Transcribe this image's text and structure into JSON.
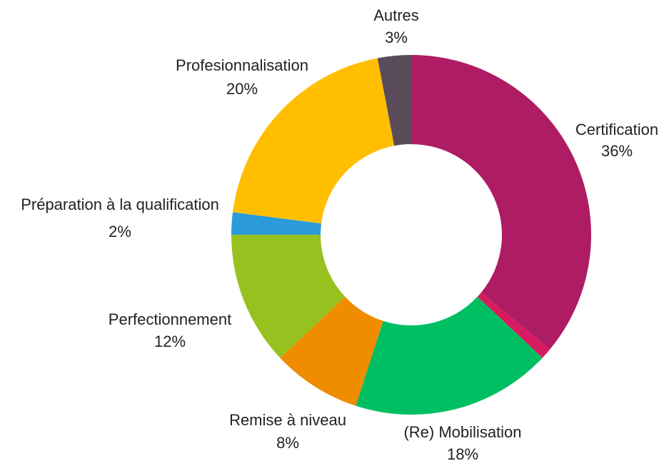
{
  "chart_data": {
    "type": "donut",
    "categories": [
      "Certification",
      null,
      "(Re) Mobilisation",
      "Remise à niveau",
      "Perfectionnement",
      "Préparation à la qualification",
      "Profesionnalisation",
      "Autres"
    ],
    "values": [
      36,
      1,
      18,
      8,
      12,
      2,
      20,
      3
    ],
    "value_labels": [
      "36%",
      null,
      "18%",
      "8%",
      "12%",
      "2%",
      "20%",
      "3%"
    ],
    "colors": [
      "#ae1c63",
      "#d81b5f",
      "#00bf63",
      "#f08c00",
      "#96c11f",
      "#2a9bd8",
      "#ffbf00",
      "#5a4b5b"
    ]
  }
}
